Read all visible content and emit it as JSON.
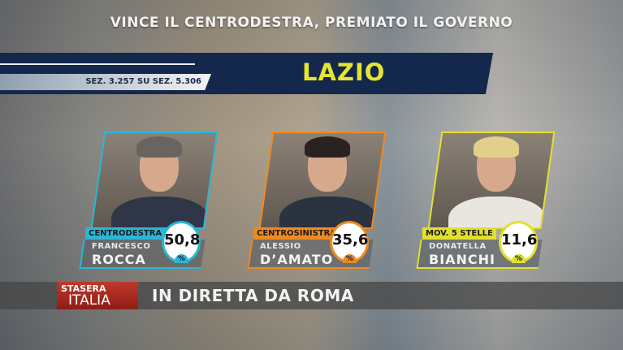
{
  "headline": "VINCE IL CENTRODESTRA, PREMIATO IL GOVERNO",
  "region": "LAZIO",
  "sections": "SEZ. 3.257 SU SEZ. 5.306",
  "candidates": [
    {
      "party": "CENTRODESTRA",
      "first_name": "FRANCESCO",
      "last_name": "ROCCA",
      "value": "50,8",
      "unit": "%",
      "color": "#2bb6d6"
    },
    {
      "party": "CENTROSINISTRA",
      "first_name": "ALESSIO",
      "last_name": "D’AMATO",
      "value": "35,6",
      "unit": "%",
      "color": "#ef8a1f"
    },
    {
      "party": "MOV. 5 STELLE",
      "first_name": "DONATELLA",
      "last_name": "BIANCHI",
      "value": "11,6",
      "unit": "%",
      "color": "#e3e02c"
    }
  ],
  "ticker": {
    "logo_top": "STASERA",
    "logo_bottom": "ITALIA",
    "text": "IN DIRETTA DA ROMA"
  }
}
